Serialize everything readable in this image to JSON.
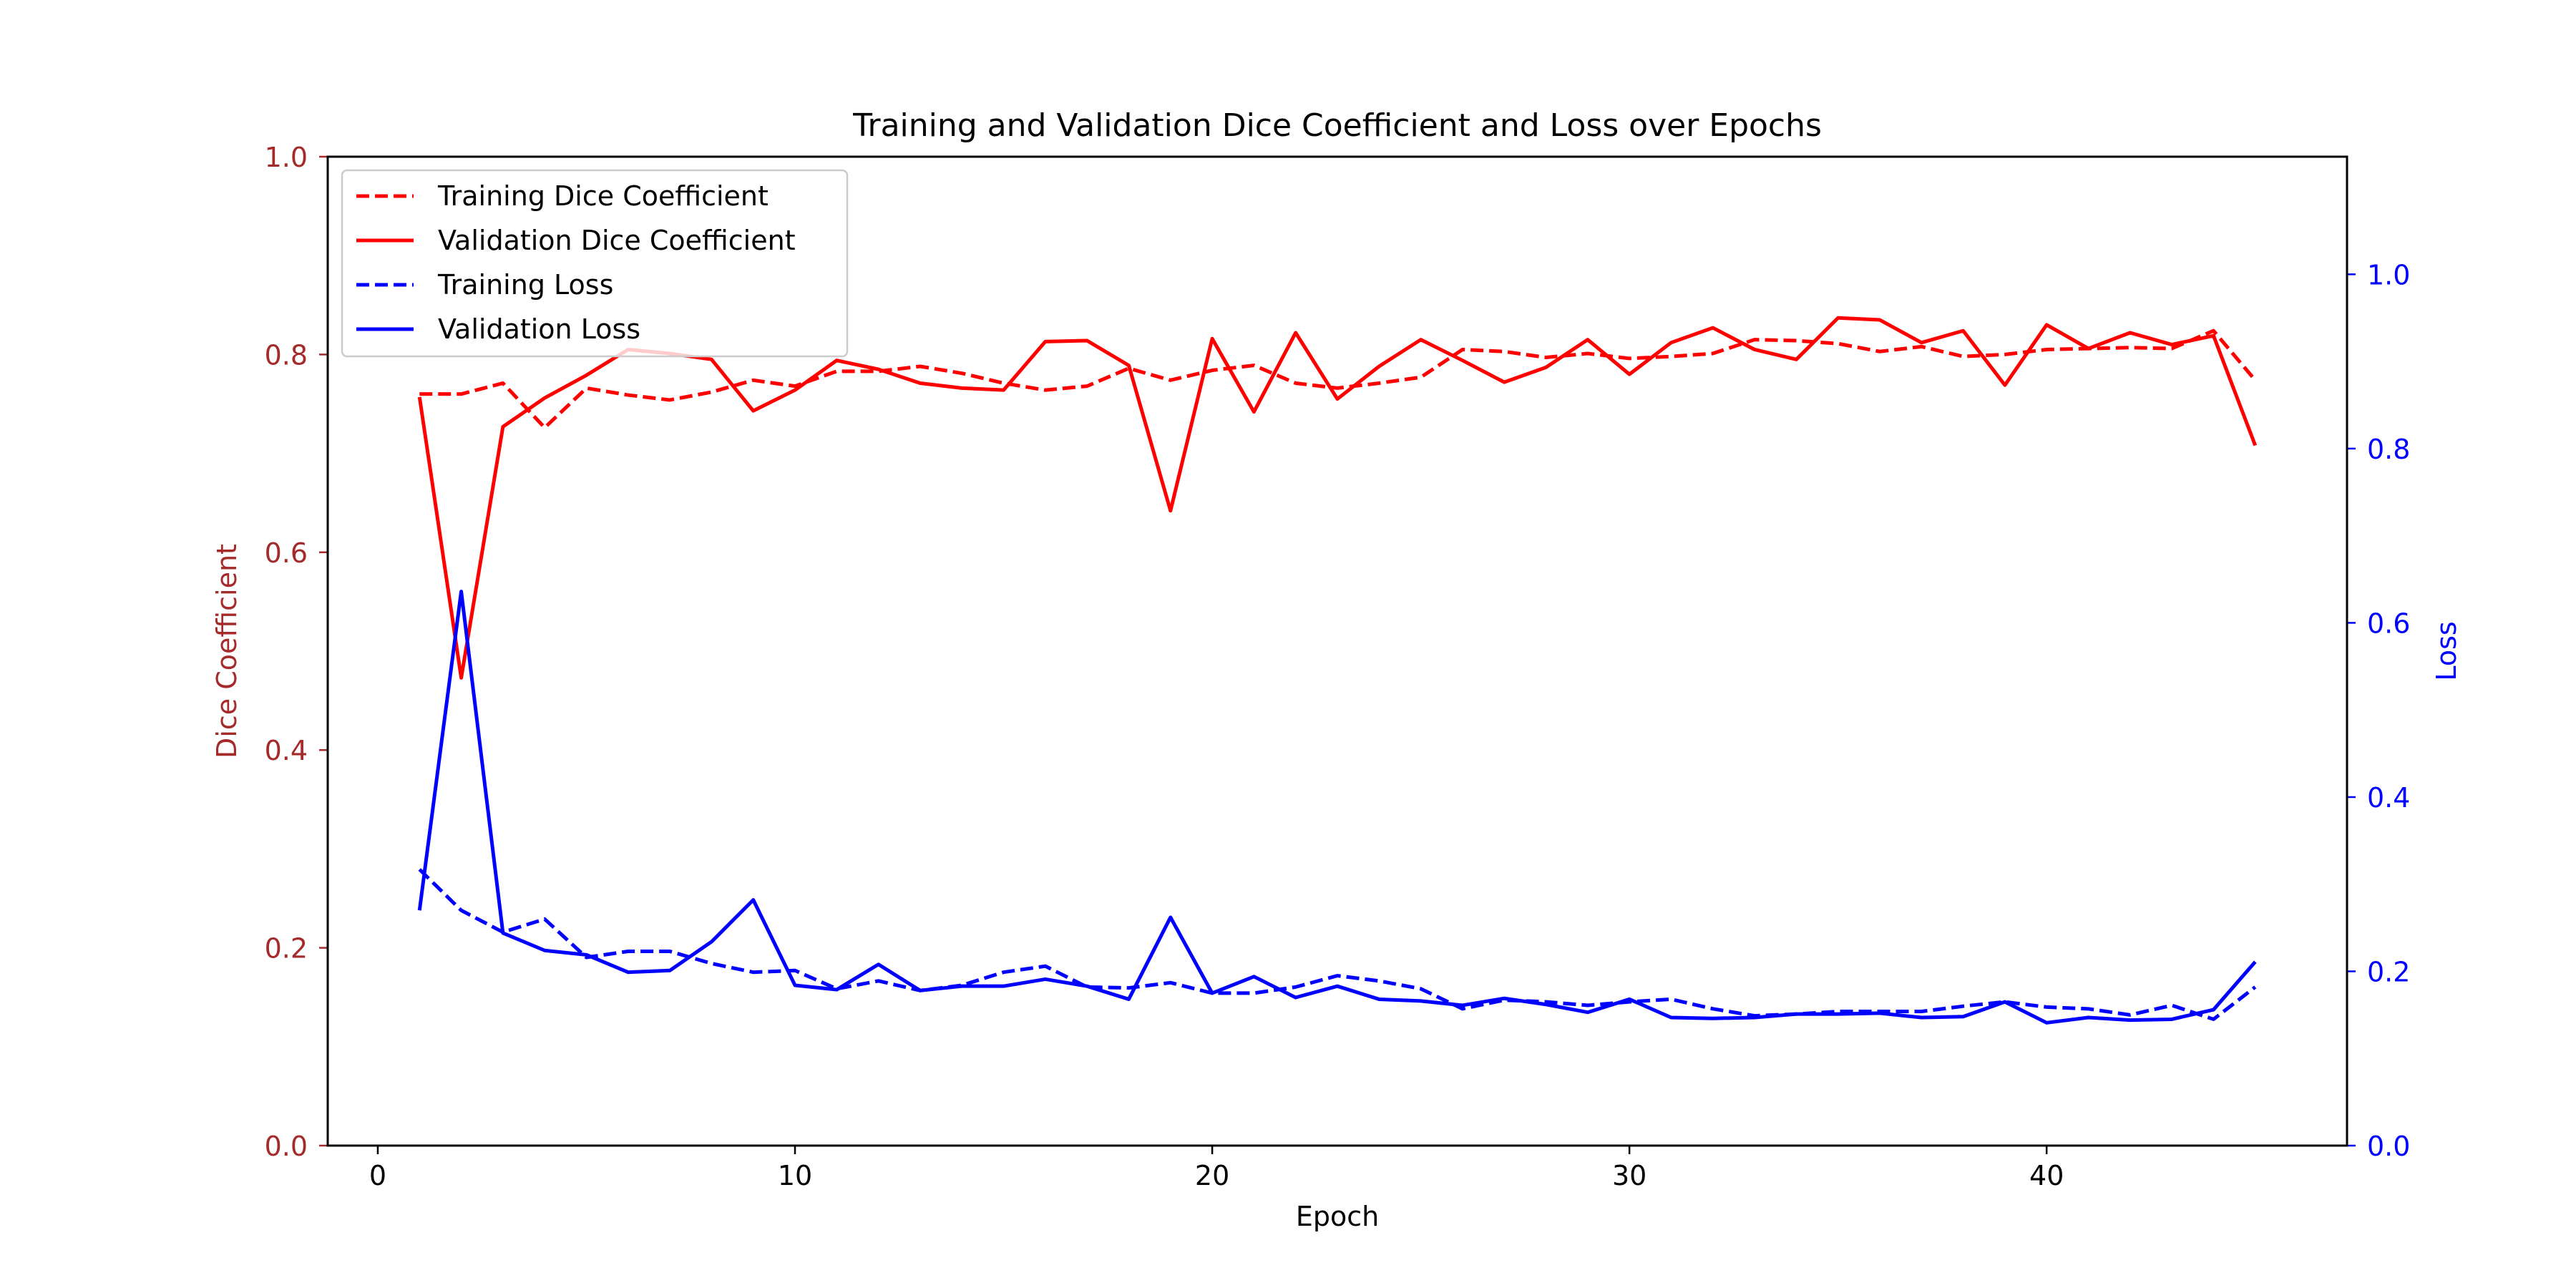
{
  "chart_data": {
    "type": "line",
    "title": "Training and Validation Dice Coefficient and Loss over Epochs",
    "xlabel": "Epoch",
    "ylabel_left": "Dice Coefficient",
    "ylabel_right": "Loss",
    "xlim": [
      -1.2,
      47.2
    ],
    "ylim_left": [
      0,
      1
    ],
    "ylim_right": [
      0,
      1.135
    ],
    "x_ticks": [
      0,
      10,
      20,
      30,
      40
    ],
    "y_ticks_left": [
      0.0,
      0.2,
      0.4,
      0.6,
      0.8,
      1.0
    ],
    "y_ticks_right": [
      0.0,
      0.2,
      0.4,
      0.6,
      0.8,
      1.0
    ],
    "grid": false,
    "legend_position": "upper-left",
    "colors": {
      "dice": "#ff0000",
      "loss": "#0000ff",
      "left_axis": "#a52a2a",
      "right_axis": "#0000ff"
    },
    "x": [
      1,
      2,
      3,
      4,
      5,
      6,
      7,
      8,
      9,
      10,
      11,
      12,
      13,
      14,
      15,
      16,
      17,
      18,
      19,
      20,
      21,
      22,
      23,
      24,
      25,
      26,
      27,
      28,
      29,
      30,
      31,
      32,
      33,
      34,
      35,
      36,
      37,
      38,
      39,
      40,
      41,
      42,
      43,
      44,
      45
    ],
    "series": [
      {
        "name": "Training Dice Coefficient",
        "axis": "left",
        "style": "dashed",
        "color": "#ff0000",
        "values": [
          0.76,
          0.76,
          0.771,
          0.726,
          0.766,
          0.759,
          0.754,
          0.762,
          0.774,
          0.768,
          0.783,
          0.783,
          0.788,
          0.781,
          0.771,
          0.764,
          0.768,
          0.786,
          0.774,
          0.784,
          0.789,
          0.771,
          0.766,
          0.771,
          0.777,
          0.805,
          0.803,
          0.797,
          0.801,
          0.796,
          0.798,
          0.801,
          0.815,
          0.814,
          0.811,
          0.803,
          0.808,
          0.798,
          0.8,
          0.805,
          0.806,
          0.807,
          0.806,
          0.824,
          0.774
        ]
      },
      {
        "name": "Validation Dice Coefficient",
        "axis": "left",
        "style": "solid",
        "color": "#ff0000",
        "values": [
          0.757,
          0.473,
          0.727,
          0.756,
          0.779,
          0.805,
          0.801,
          0.795,
          0.743,
          0.764,
          0.794,
          0.785,
          0.771,
          0.766,
          0.764,
          0.813,
          0.814,
          0.789,
          0.642,
          0.816,
          0.742,
          0.822,
          0.755,
          0.788,
          0.815,
          0.794,
          0.772,
          0.787,
          0.815,
          0.78,
          0.812,
          0.827,
          0.805,
          0.795,
          0.837,
          0.835,
          0.812,
          0.824,
          0.769,
          0.83,
          0.806,
          0.822,
          0.81,
          0.819,
          0.708
        ]
      },
      {
        "name": "Training Loss",
        "axis": "right",
        "style": "dashed",
        "color": "#0000ff",
        "values": [
          0.317,
          0.27,
          0.245,
          0.26,
          0.216,
          0.223,
          0.223,
          0.209,
          0.199,
          0.201,
          0.18,
          0.189,
          0.178,
          0.184,
          0.199,
          0.206,
          0.182,
          0.181,
          0.187,
          0.175,
          0.175,
          0.182,
          0.195,
          0.189,
          0.18,
          0.157,
          0.167,
          0.165,
          0.161,
          0.165,
          0.168,
          0.157,
          0.149,
          0.151,
          0.154,
          0.154,
          0.154,
          0.16,
          0.165,
          0.159,
          0.157,
          0.15,
          0.161,
          0.145,
          0.182
        ]
      },
      {
        "name": "Validation Loss",
        "axis": "right",
        "style": "solid",
        "color": "#0000ff",
        "values": [
          0.27,
          0.636,
          0.244,
          0.224,
          0.219,
          0.199,
          0.201,
          0.234,
          0.282,
          0.184,
          0.179,
          0.208,
          0.178,
          0.183,
          0.183,
          0.191,
          0.183,
          0.168,
          0.262,
          0.175,
          0.194,
          0.17,
          0.183,
          0.168,
          0.166,
          0.161,
          0.169,
          0.162,
          0.153,
          0.168,
          0.147,
          0.146,
          0.147,
          0.151,
          0.151,
          0.152,
          0.147,
          0.148,
          0.165,
          0.141,
          0.147,
          0.144,
          0.145,
          0.156,
          0.211
        ]
      }
    ]
  }
}
